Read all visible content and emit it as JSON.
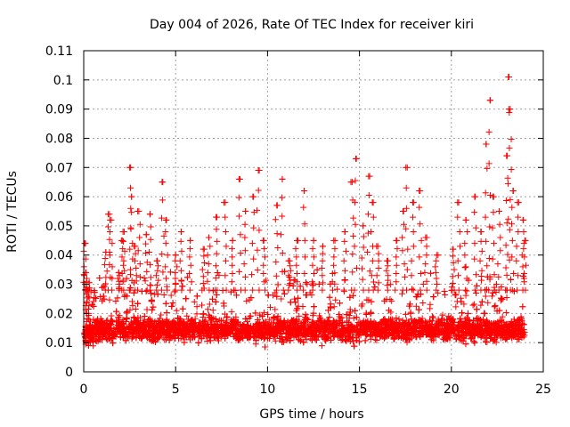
{
  "chart_data": {
    "type": "scatter",
    "title": "Day 004 of 2026, Rate Of TEC Index for receiver kiri",
    "xlabel": "GPS time / hours",
    "ylabel": "ROTI / TECUs",
    "xlim": [
      0,
      25
    ],
    "ylim": [
      0,
      0.11
    ],
    "xticks": [
      "0",
      "5",
      "10",
      "15",
      "20",
      "25"
    ],
    "yticks": [
      "0",
      "0.01",
      "0.02",
      "0.03",
      "0.04",
      "0.05",
      "0.06",
      "0.07",
      "0.08",
      "0.09",
      "0.1",
      "0.11"
    ],
    "grid": true,
    "marker": "plus",
    "color": "#ff0000",
    "x_data_range": [
      0,
      24
    ],
    "series": [
      {
        "points": [
          [
            0.05,
            0.044
          ],
          [
            0.1,
            0.034
          ],
          [
            0.15,
            0.02
          ],
          [
            0.2,
            0.015
          ],
          [
            0.3,
            0.012
          ],
          [
            1.2,
            0.041
          ],
          [
            1.4,
            0.054
          ],
          [
            1.5,
            0.052
          ],
          [
            1.9,
            0.034
          ],
          [
            2.1,
            0.045
          ],
          [
            2.2,
            0.048
          ],
          [
            2.5,
            0.07
          ],
          [
            2.6,
            0.06
          ],
          [
            2.8,
            0.043
          ],
          [
            3.0,
            0.055
          ],
          [
            3.4,
            0.047
          ],
          [
            3.6,
            0.054
          ],
          [
            4.0,
            0.038
          ],
          [
            4.3,
            0.065
          ],
          [
            4.5,
            0.052
          ],
          [
            5.0,
            0.04
          ],
          [
            5.3,
            0.048
          ],
          [
            5.8,
            0.045
          ],
          [
            6.5,
            0.042
          ],
          [
            6.8,
            0.046
          ],
          [
            7.2,
            0.053
          ],
          [
            7.7,
            0.058
          ],
          [
            8.1,
            0.045
          ],
          [
            8.5,
            0.066
          ],
          [
            8.8,
            0.055
          ],
          [
            9.2,
            0.06
          ],
          [
            9.5,
            0.069
          ],
          [
            9.8,
            0.045
          ],
          [
            10.5,
            0.057
          ],
          [
            10.8,
            0.066
          ],
          [
            11.2,
            0.038
          ],
          [
            11.6,
            0.045
          ],
          [
            12.0,
            0.062
          ],
          [
            12.5,
            0.045
          ],
          [
            13.0,
            0.043
          ],
          [
            13.6,
            0.045
          ],
          [
            14.2,
            0.048
          ],
          [
            14.6,
            0.065
          ],
          [
            14.8,
            0.073
          ],
          [
            15.2,
            0.05
          ],
          [
            15.5,
            0.067
          ],
          [
            15.7,
            0.058
          ],
          [
            16.0,
            0.043
          ],
          [
            16.5,
            0.038
          ],
          [
            17.0,
            0.045
          ],
          [
            17.4,
            0.055
          ],
          [
            17.6,
            0.07
          ],
          [
            17.9,
            0.058
          ],
          [
            18.3,
            0.062
          ],
          [
            18.6,
            0.046
          ],
          [
            19.2,
            0.04
          ],
          [
            20.1,
            0.042
          ],
          [
            20.4,
            0.058
          ],
          [
            20.8,
            0.052
          ],
          [
            21.3,
            0.06
          ],
          [
            21.6,
            0.048
          ],
          [
            21.9,
            0.078
          ],
          [
            22.1,
            0.093
          ],
          [
            22.3,
            0.06
          ],
          [
            22.6,
            0.055
          ],
          [
            23.0,
            0.074
          ],
          [
            23.1,
            0.101
          ],
          [
            23.2,
            0.09
          ],
          [
            23.35,
            0.062
          ],
          [
            23.6,
            0.058
          ],
          [
            23.9,
            0.052
          ],
          [
            24.0,
            0.045
          ]
        ]
      }
    ]
  }
}
